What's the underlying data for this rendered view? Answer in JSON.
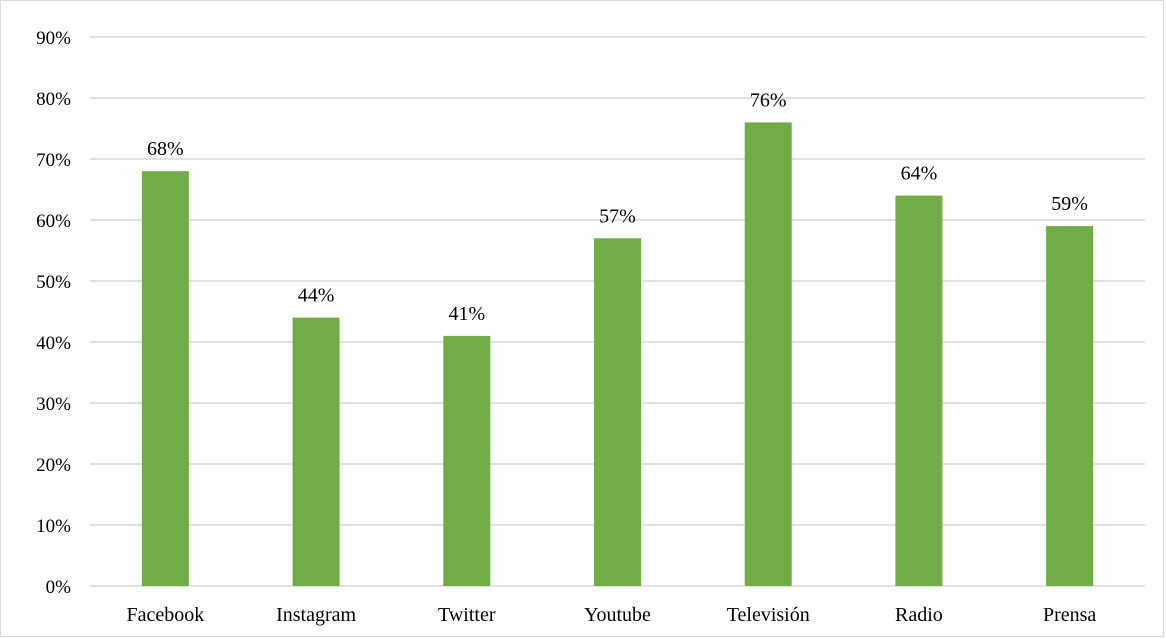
{
  "chart_data": {
    "type": "bar",
    "title": "",
    "xlabel": "",
    "ylabel": "",
    "categories": [
      "Facebook",
      "Instagram",
      "Twitter",
      "Youtube",
      "Televisión",
      "Radio",
      "Prensa"
    ],
    "values": [
      68,
      44,
      41,
      57,
      76,
      64,
      59
    ],
    "data_labels": [
      "68%",
      "44%",
      "41%",
      "57%",
      "76%",
      "64%",
      "59%"
    ],
    "ylim": [
      0,
      90
    ],
    "y_ticks": [
      0,
      10,
      20,
      30,
      40,
      50,
      60,
      70,
      80,
      90
    ],
    "y_tick_labels": [
      "0%",
      "10%",
      "20%",
      "30%",
      "40%",
      "50%",
      "60%",
      "70%",
      "80%",
      "90%"
    ],
    "grid": true,
    "legend": "none",
    "bar_color": "#70AD47",
    "grid_color": "#D9D9D9"
  }
}
